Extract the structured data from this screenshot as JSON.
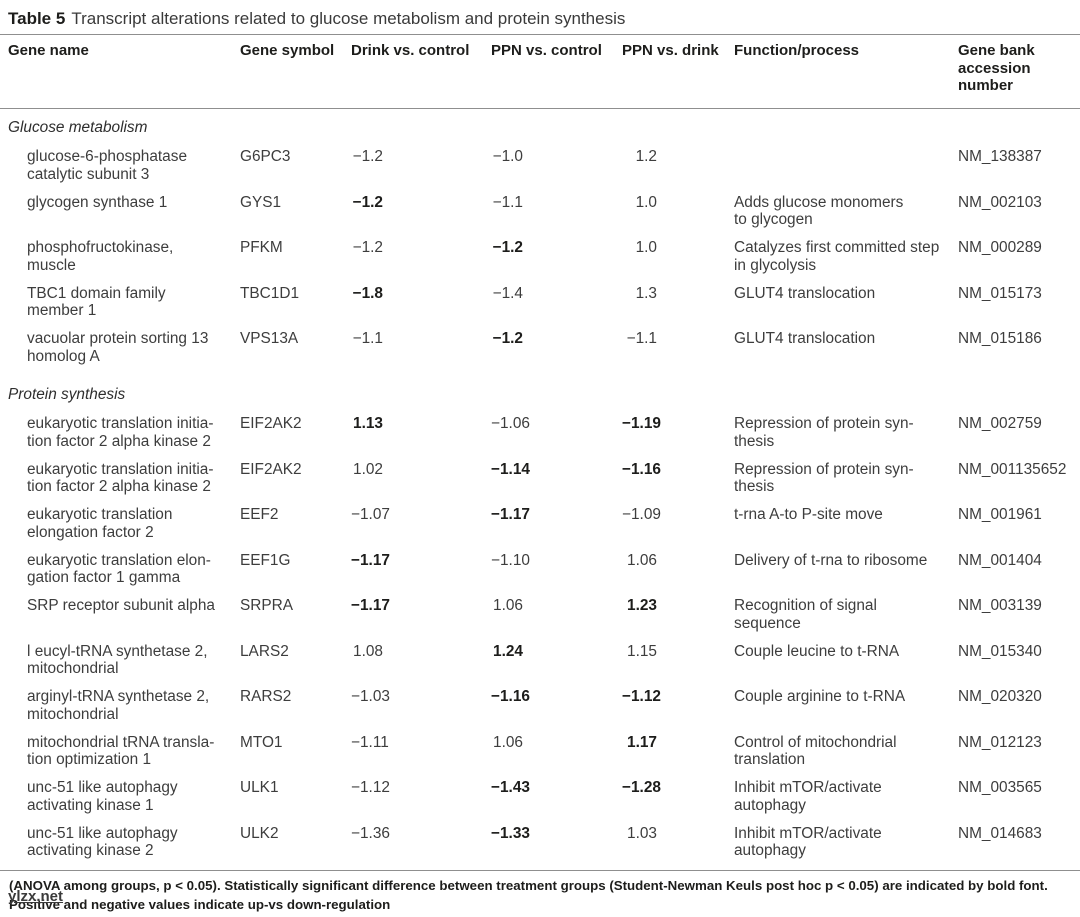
{
  "title": {
    "label": "Table 5",
    "text": "Transcript alterations related to glucose metabolism and protein synthesis"
  },
  "columns": [
    "Gene name",
    "Gene symbol",
    "Drink vs. control",
    "PPN vs. control",
    "PPN vs. drink",
    "Function/process",
    "Gene bank\naccession\nnumber"
  ],
  "rows": [
    {
      "type": "section",
      "label": "Glucose metabolism"
    },
    {
      "type": "data",
      "name": "glucose-6-phosphatase\ncatalytic subunit 3",
      "symbol": "G6PC3",
      "drink": "−1.2",
      "drink_bold": false,
      "ppn_control": "−1.0",
      "ppn_control_bold": false,
      "ppn_drink": "1.2",
      "ppn_drink_bold": false,
      "function": "",
      "accession": "NM_138387"
    },
    {
      "type": "data",
      "name": "glycogen synthase 1",
      "symbol": "GYS1",
      "drink": "−1.2",
      "drink_bold": true,
      "ppn_control": "−1.1",
      "ppn_control_bold": false,
      "ppn_drink": "1.0",
      "ppn_drink_bold": false,
      "function": "Adds glucose monomers\nto glycogen",
      "accession": "NM_002103"
    },
    {
      "type": "data",
      "name": "phosphofructokinase,\nmuscle",
      "symbol": "PFKM",
      "drink": "−1.2",
      "drink_bold": false,
      "ppn_control": "−1.2",
      "ppn_control_bold": true,
      "ppn_drink": "1.0",
      "ppn_drink_bold": false,
      "function": "Catalyzes first committed step\nin glycolysis",
      "accession": "NM_000289"
    },
    {
      "type": "data",
      "name": "TBC1 domain family\nmember 1",
      "symbol": "TBC1D1",
      "drink": "−1.8",
      "drink_bold": true,
      "ppn_control": "−1.4",
      "ppn_control_bold": false,
      "ppn_drink": "1.3",
      "ppn_drink_bold": false,
      "function": "GLUT4 translocation",
      "accession": "NM_015173"
    },
    {
      "type": "data",
      "name": "vacuolar protein sorting 13\nhomolog A",
      "symbol": "VPS13A",
      "drink": "−1.1",
      "drink_bold": false,
      "ppn_control": "−1.2",
      "ppn_control_bold": true,
      "ppn_drink": "−1.1",
      "ppn_drink_bold": false,
      "function": "GLUT4 translocation",
      "accession": "NM_015186"
    },
    {
      "type": "section",
      "label": "Protein synthesis"
    },
    {
      "type": "data",
      "name": "eukaryotic translation initia-\ntion factor 2 alpha kinase 2",
      "symbol": "EIF2AK2",
      "drink": "1.13",
      "drink_bold": true,
      "ppn_control": "−1.06",
      "ppn_control_bold": false,
      "ppn_drink": "−1.19",
      "ppn_drink_bold": true,
      "function": "Repression of protein syn-\nthesis",
      "accession": "NM_002759"
    },
    {
      "type": "data",
      "name": "eukaryotic translation initia-\ntion factor 2 alpha kinase 2",
      "symbol": "EIF2AK2",
      "drink": "1.02",
      "drink_bold": false,
      "ppn_control": "−1.14",
      "ppn_control_bold": true,
      "ppn_drink": "−1.16",
      "ppn_drink_bold": true,
      "function": "Repression of protein syn-\nthesis",
      "accession": "NM_001135652"
    },
    {
      "type": "data",
      "name": "eukaryotic translation\nelongation factor 2",
      "symbol": "EEF2",
      "drink": "−1.07",
      "drink_bold": false,
      "ppn_control": "−1.17",
      "ppn_control_bold": true,
      "ppn_drink": "−1.09",
      "ppn_drink_bold": false,
      "function": "t-rna A-to P-site move",
      "accession": "NM_001961"
    },
    {
      "type": "data",
      "name": "eukaryotic translation elon-\ngation factor 1 gamma",
      "symbol": "EEF1G",
      "drink": "−1.17",
      "drink_bold": true,
      "ppn_control": "−1.10",
      "ppn_control_bold": false,
      "ppn_drink": "1.06",
      "ppn_drink_bold": false,
      "function": "Delivery of t-rna to ribosome",
      "accession": "NM_001404"
    },
    {
      "type": "data",
      "name": "SRP receptor subunit alpha",
      "symbol": "SRPRA",
      "drink": "−1.17",
      "drink_bold": true,
      "ppn_control": "1.06",
      "ppn_control_bold": false,
      "ppn_drink": "1.23",
      "ppn_drink_bold": true,
      "function": "Recognition of signal\nsequence",
      "accession": "NM_003139"
    },
    {
      "type": "data",
      "name": "l eucyl-tRNA synthetase 2,\nmitochondrial",
      "symbol": "LARS2",
      "drink": "1.08",
      "drink_bold": false,
      "ppn_control": "1.24",
      "ppn_control_bold": true,
      "ppn_drink": "1.15",
      "ppn_drink_bold": false,
      "function": "Couple leucine to t-RNA",
      "accession": "NM_015340"
    },
    {
      "type": "data",
      "name": "arginyl-tRNA synthetase 2,\nmitochondrial",
      "symbol": "RARS2",
      "drink": "−1.03",
      "drink_bold": false,
      "ppn_control": "−1.16",
      "ppn_control_bold": true,
      "ppn_drink": "−1.12",
      "ppn_drink_bold": true,
      "function": "Couple arginine to t-RNA",
      "accession": "NM_020320"
    },
    {
      "type": "data",
      "name": "mitochondrial tRNA transla-\ntion optimization 1",
      "symbol": "MTO1",
      "drink": "−1.11",
      "drink_bold": false,
      "ppn_control": "1.06",
      "ppn_control_bold": false,
      "ppn_drink": "1.17",
      "ppn_drink_bold": true,
      "function": "Control of mitochondrial\ntranslation",
      "accession": "NM_012123"
    },
    {
      "type": "data",
      "name": "unc-51 like autophagy\nactivating kinase 1",
      "symbol": "ULK1",
      "drink": "−1.12",
      "drink_bold": false,
      "ppn_control": "−1.43",
      "ppn_control_bold": true,
      "ppn_drink": "−1.28",
      "ppn_drink_bold": true,
      "function": "Inhibit mTOR/activate\nautophagy",
      "accession": "NM_003565"
    },
    {
      "type": "data",
      "name": "unc-51 like autophagy\nactivating kinase 2",
      "symbol": "ULK2",
      "drink": "−1.36",
      "drink_bold": false,
      "ppn_control": "−1.33",
      "ppn_control_bold": true,
      "ppn_drink": "1.03",
      "ppn_drink_bold": false,
      "function": "Inhibit mTOR/activate\nautophagy",
      "accession": "NM_014683"
    }
  ],
  "footnotes": [
    "(ANOVA among groups, p < 0.05). Statistically significant difference between treatment groups (Student-Newman Keuls post hoc p < 0.05) are indicated by bold font.",
    "Positive and negative values indicate up-vs down-regulation"
  ],
  "watermark": "ylzx.net",
  "colors": {
    "text": "#3d3d3d",
    "heading": "#1d1d1b",
    "rule": "#8f8f8f",
    "background": "#ffffff"
  }
}
